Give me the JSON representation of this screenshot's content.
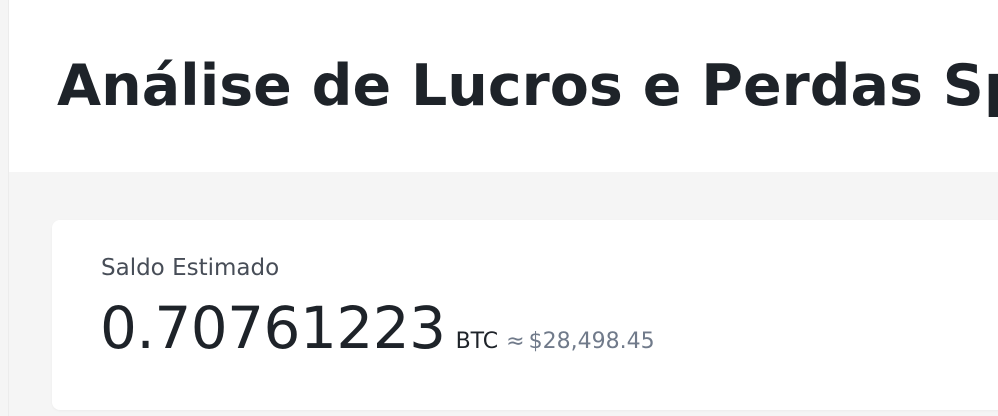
{
  "header": {
    "title": "Análise de Lucros e Perdas Spot"
  },
  "balance": {
    "label": "Saldo Estimado",
    "amount": "0.70761223",
    "currency": "BTC",
    "approx_symbol": "≈",
    "fiat_value": "$28,498.45"
  },
  "colors": {
    "text_primary": "#1e2329",
    "text_secondary": "#474d57",
    "text_muted": "#707a8a",
    "background": "#f5f5f5",
    "card": "#ffffff"
  }
}
